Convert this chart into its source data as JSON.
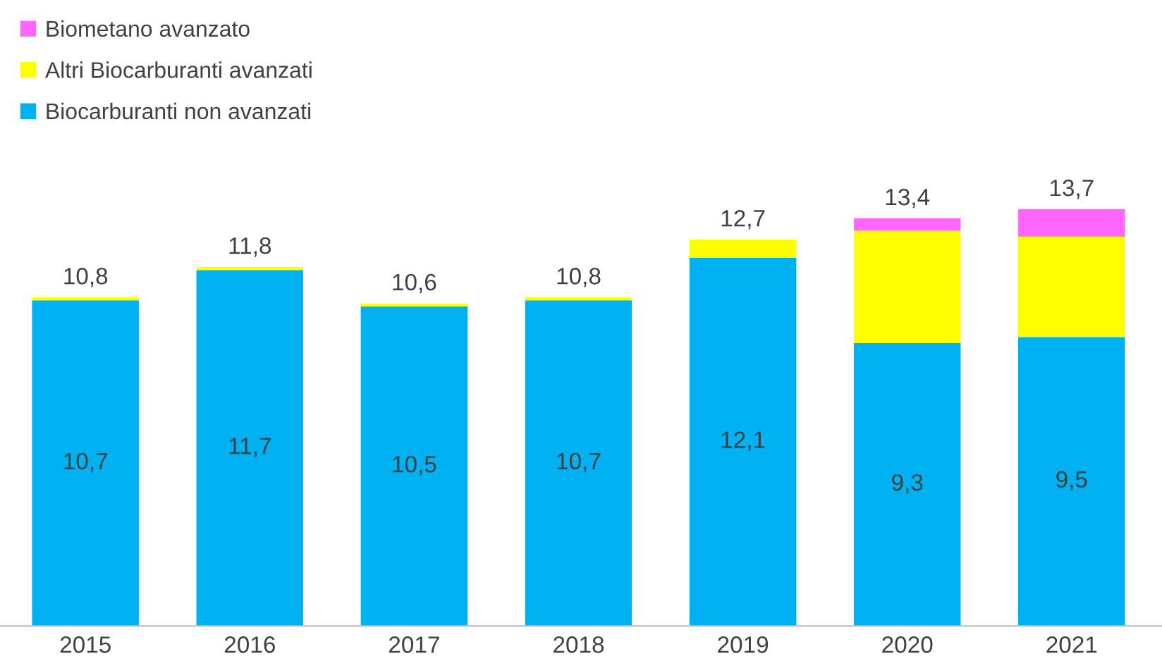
{
  "chart_data": {
    "type": "bar",
    "stacked": true,
    "categories": [
      "2015",
      "2016",
      "2017",
      "2018",
      "2019",
      "2020",
      "2021"
    ],
    "series": [
      {
        "name": "Biocarburanti non avanzati",
        "color": "#00b0f0",
        "values": [
          10.7,
          11.7,
          10.5,
          10.7,
          12.1,
          9.3,
          9.5
        ],
        "value_labels": [
          "10,7",
          "11,7",
          "10,5",
          "10,7",
          "12,1",
          "9,3",
          "9,5"
        ]
      },
      {
        "name": "Altri Biocarburanti avanzati",
        "color": "#ffff00",
        "values": [
          0.1,
          0.1,
          0.1,
          0.1,
          0.6,
          3.7,
          3.3
        ]
      },
      {
        "name": "Biometano avanzato",
        "color": "#ff66ff",
        "values": [
          0,
          0,
          0,
          0,
          0,
          0.4,
          0.9
        ]
      }
    ],
    "totals": [
      "10,8",
      "11,8",
      "10,6",
      "10,8",
      "12,7",
      "13,4",
      "13,7"
    ],
    "legend": "top left",
    "grid": false
  }
}
